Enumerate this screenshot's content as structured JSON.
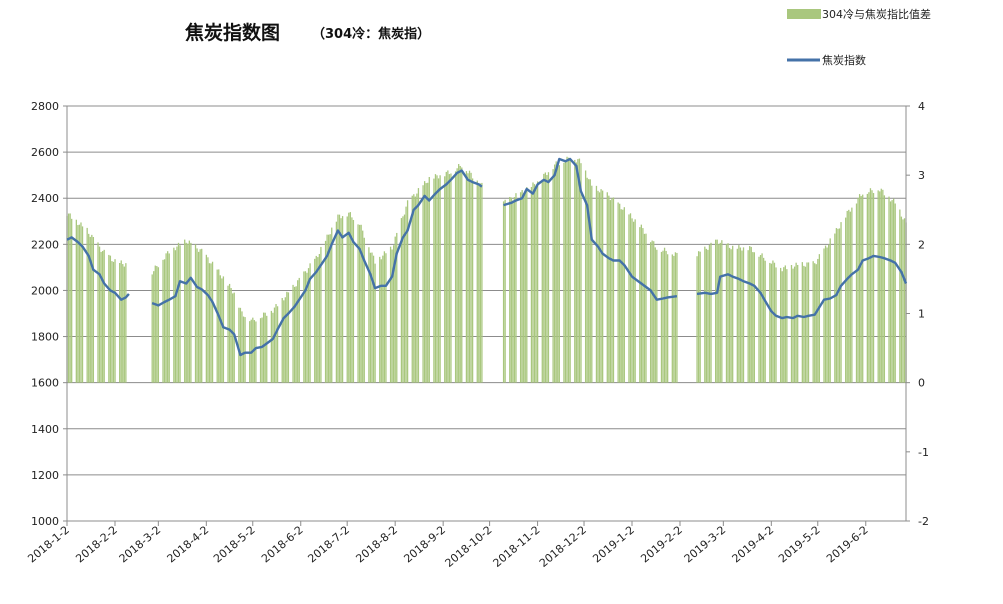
{
  "chart_data": {
    "type": "bar+line",
    "title": "焦炭指数图",
    "subtitle": "（304冷：焦炭指）",
    "legend": [
      "304冷与焦炭指比值差",
      "焦炭指数"
    ],
    "legend_position": "top-right",
    "x_tick_labels": [
      "2018-1-2",
      "2018-2-2",
      "2018-3-2",
      "2018-4-2",
      "2018-5-2",
      "2018-6-2",
      "2018-7-2",
      "2018-8-2",
      "2018-9-2",
      "2018-10-2",
      "2018-11-2",
      "2018-12-2",
      "2019-1-2",
      "2019-2-2",
      "2019-3-2",
      "2019-4-2",
      "2019-5-2",
      "2019-6-2"
    ],
    "x_range": [
      "2018-01-02",
      "2019-06-28"
    ],
    "y_left": {
      "min": 1000,
      "max": 2800,
      "step": 200,
      "ticks": [
        1000,
        1200,
        1400,
        1600,
        1800,
        2000,
        2200,
        2400,
        2600,
        2800
      ]
    },
    "y_right": {
      "min": -2,
      "max": 4,
      "step": 1,
      "ticks": [
        -2,
        -1,
        0,
        1,
        2,
        3,
        4
      ]
    },
    "grid": true,
    "bar_color": "#a9c77e",
    "line_color": "#4472a8",
    "gap_periods": [
      [
        "2018-02-12",
        "2018-02-25"
      ],
      [
        "2018-09-28",
        "2018-10-10"
      ],
      [
        "2019-02-01",
        "2019-02-12"
      ]
    ],
    "series": [
      {
        "name": "焦炭指数",
        "axis": "left",
        "points": [
          [
            "2018-01-02",
            2220
          ],
          [
            "2018-01-05",
            2230
          ],
          [
            "2018-01-09",
            2210
          ],
          [
            "2018-01-12",
            2190
          ],
          [
            "2018-01-16",
            2150
          ],
          [
            "2018-01-19",
            2090
          ],
          [
            "2018-01-23",
            2070
          ],
          [
            "2018-01-26",
            2030
          ],
          [
            "2018-01-30",
            2000
          ],
          [
            "2018-02-02",
            1990
          ],
          [
            "2018-02-06",
            1960
          ],
          [
            "2018-02-09",
            1970
          ],
          [
            "2018-02-11",
            1985
          ],
          [
            "2018-02-26",
            1945
          ],
          [
            "2018-03-02",
            1935
          ],
          [
            "2018-03-06",
            1950
          ],
          [
            "2018-03-09",
            1960
          ],
          [
            "2018-03-13",
            1975
          ],
          [
            "2018-03-16",
            2040
          ],
          [
            "2018-03-20",
            2030
          ],
          [
            "2018-03-23",
            2055
          ],
          [
            "2018-03-27",
            2015
          ],
          [
            "2018-03-30",
            2005
          ],
          [
            "2018-04-03",
            1980
          ],
          [
            "2018-04-06",
            1950
          ],
          [
            "2018-04-10",
            1890
          ],
          [
            "2018-04-13",
            1840
          ],
          [
            "2018-04-17",
            1830
          ],
          [
            "2018-04-20",
            1810
          ],
          [
            "2018-04-24",
            1720
          ],
          [
            "2018-04-27",
            1730
          ],
          [
            "2018-05-01",
            1730
          ],
          [
            "2018-05-04",
            1750
          ],
          [
            "2018-05-08",
            1755
          ],
          [
            "2018-05-11",
            1770
          ],
          [
            "2018-05-15",
            1790
          ],
          [
            "2018-05-18",
            1830
          ],
          [
            "2018-05-22",
            1880
          ],
          [
            "2018-05-25",
            1900
          ],
          [
            "2018-05-29",
            1930
          ],
          [
            "2018-06-01",
            1960
          ],
          [
            "2018-06-05",
            2000
          ],
          [
            "2018-06-08",
            2050
          ],
          [
            "2018-06-12",
            2080
          ],
          [
            "2018-06-15",
            2110
          ],
          [
            "2018-06-19",
            2150
          ],
          [
            "2018-06-22",
            2200
          ],
          [
            "2018-06-26",
            2260
          ],
          [
            "2018-06-29",
            2230
          ],
          [
            "2018-07-03",
            2250
          ],
          [
            "2018-07-06",
            2210
          ],
          [
            "2018-07-10",
            2180
          ],
          [
            "2018-07-13",
            2130
          ],
          [
            "2018-07-17",
            2070
          ],
          [
            "2018-07-20",
            2010
          ],
          [
            "2018-07-24",
            2020
          ],
          [
            "2018-07-27",
            2020
          ],
          [
            "2018-07-31",
            2060
          ],
          [
            "2018-08-03",
            2160
          ],
          [
            "2018-08-07",
            2230
          ],
          [
            "2018-08-10",
            2260
          ],
          [
            "2018-08-14",
            2350
          ],
          [
            "2018-08-17",
            2370
          ],
          [
            "2018-08-21",
            2410
          ],
          [
            "2018-08-24",
            2390
          ],
          [
            "2018-08-28",
            2420
          ],
          [
            "2018-08-31",
            2440
          ],
          [
            "2018-09-04",
            2460
          ],
          [
            "2018-09-07",
            2480
          ],
          [
            "2018-09-11",
            2510
          ],
          [
            "2018-09-14",
            2520
          ],
          [
            "2018-09-18",
            2480
          ],
          [
            "2018-09-21",
            2470
          ],
          [
            "2018-09-25",
            2460
          ],
          [
            "2018-09-27",
            2450
          ],
          [
            "2018-10-11",
            2370
          ],
          [
            "2018-10-16",
            2380
          ],
          [
            "2018-10-19",
            2390
          ],
          [
            "2018-10-23",
            2400
          ],
          [
            "2018-10-26",
            2440
          ],
          [
            "2018-10-30",
            2420
          ],
          [
            "2018-11-02",
            2460
          ],
          [
            "2018-11-06",
            2480
          ],
          [
            "2018-11-09",
            2470
          ],
          [
            "2018-11-13",
            2500
          ],
          [
            "2018-11-16",
            2570
          ],
          [
            "2018-11-20",
            2560
          ],
          [
            "2018-11-23",
            2570
          ],
          [
            "2018-11-27",
            2540
          ],
          [
            "2018-11-30",
            2430
          ],
          [
            "2018-12-04",
            2370
          ],
          [
            "2018-12-07",
            2220
          ],
          [
            "2018-12-11",
            2190
          ],
          [
            "2018-12-14",
            2160
          ],
          [
            "2018-12-18",
            2140
          ],
          [
            "2018-12-21",
            2130
          ],
          [
            "2018-12-25",
            2130
          ],
          [
            "2018-12-28",
            2110
          ],
          [
            "2019-01-02",
            2060
          ],
          [
            "2019-01-08",
            2030
          ],
          [
            "2019-01-14",
            2000
          ],
          [
            "2019-01-18",
            1960
          ],
          [
            "2019-01-22",
            1965
          ],
          [
            "2019-01-25",
            1970
          ],
          [
            "2019-01-31",
            1975
          ],
          [
            "2019-02-13",
            1985
          ],
          [
            "2019-02-18",
            1990
          ],
          [
            "2019-02-22",
            1985
          ],
          [
            "2019-02-26",
            1990
          ],
          [
            "2019-02-28",
            2060
          ],
          [
            "2019-03-05",
            2070
          ],
          [
            "2019-03-08",
            2060
          ],
          [
            "2019-03-12",
            2050
          ],
          [
            "2019-03-15",
            2040
          ],
          [
            "2019-03-19",
            2030
          ],
          [
            "2019-03-22",
            2020
          ],
          [
            "2019-03-26",
            1990
          ],
          [
            "2019-03-29",
            1955
          ],
          [
            "2019-04-02",
            1910
          ],
          [
            "2019-04-05",
            1890
          ],
          [
            "2019-04-09",
            1880
          ],
          [
            "2019-04-12",
            1885
          ],
          [
            "2019-04-16",
            1880
          ],
          [
            "2019-04-19",
            1890
          ],
          [
            "2019-04-23",
            1885
          ],
          [
            "2019-04-26",
            1890
          ],
          [
            "2019-04-30",
            1895
          ],
          [
            "2019-05-06",
            1960
          ],
          [
            "2019-05-10",
            1965
          ],
          [
            "2019-05-14",
            1980
          ],
          [
            "2019-05-17",
            2020
          ],
          [
            "2019-05-21",
            2050
          ],
          [
            "2019-05-24",
            2070
          ],
          [
            "2019-05-28",
            2090
          ],
          [
            "2019-05-31",
            2130
          ],
          [
            "2019-06-04",
            2140
          ],
          [
            "2019-06-07",
            2150
          ],
          [
            "2019-06-11",
            2145
          ],
          [
            "2019-06-14",
            2140
          ],
          [
            "2019-06-18",
            2130
          ],
          [
            "2019-06-21",
            2120
          ],
          [
            "2019-06-25",
            2080
          ],
          [
            "2019-06-28",
            2030
          ]
        ]
      },
      {
        "name": "304冷与焦炭指比值差",
        "axis": "right",
        "points": [
          [
            "2018-01-02",
            2.45
          ],
          [
            "2018-01-15",
            2.2
          ],
          [
            "2018-01-25",
            1.9
          ],
          [
            "2018-02-02",
            1.75
          ],
          [
            "2018-02-11",
            1.7
          ],
          [
            "2018-02-26",
            1.6
          ],
          [
            "2018-03-09",
            1.9
          ],
          [
            "2018-03-20",
            2.05
          ],
          [
            "2018-03-30",
            1.9
          ],
          [
            "2018-04-10",
            1.6
          ],
          [
            "2018-04-20",
            1.3
          ],
          [
            "2018-04-25",
            1.0
          ],
          [
            "2018-05-02",
            0.9
          ],
          [
            "2018-05-15",
            1.05
          ],
          [
            "2018-05-29",
            1.4
          ],
          [
            "2018-06-12",
            1.8
          ],
          [
            "2018-06-26",
            2.4
          ],
          [
            "2018-07-03",
            2.45
          ],
          [
            "2018-07-10",
            2.3
          ],
          [
            "2018-07-20",
            1.75
          ],
          [
            "2018-07-31",
            1.95
          ],
          [
            "2018-08-10",
            2.6
          ],
          [
            "2018-08-24",
            2.95
          ],
          [
            "2018-09-07",
            3.05
          ],
          [
            "2018-09-14",
            3.15
          ],
          [
            "2018-09-27",
            2.85
          ],
          [
            "2018-10-11",
            2.6
          ],
          [
            "2018-10-23",
            2.75
          ],
          [
            "2018-11-02",
            2.9
          ],
          [
            "2018-11-13",
            3.15
          ],
          [
            "2018-11-23",
            3.25
          ],
          [
            "2018-11-30",
            3.2
          ],
          [
            "2018-12-07",
            2.85
          ],
          [
            "2018-12-18",
            2.7
          ],
          [
            "2018-12-28",
            2.5
          ],
          [
            "2019-01-08",
            2.25
          ],
          [
            "2019-01-18",
            1.95
          ],
          [
            "2019-01-31",
            1.85
          ],
          [
            "2019-02-13",
            1.85
          ],
          [
            "2019-02-26",
            2.05
          ],
          [
            "2019-03-08",
            1.95
          ],
          [
            "2019-03-19",
            1.95
          ],
          [
            "2019-03-29",
            1.8
          ],
          [
            "2019-04-09",
            1.65
          ],
          [
            "2019-04-19",
            1.7
          ],
          [
            "2019-04-30",
            1.72
          ],
          [
            "2019-05-10",
            2.05
          ],
          [
            "2019-05-21",
            2.45
          ],
          [
            "2019-05-31",
            2.75
          ],
          [
            "2019-06-11",
            2.8
          ],
          [
            "2019-06-21",
            2.6
          ],
          [
            "2019-06-28",
            2.3
          ]
        ]
      }
    ]
  }
}
